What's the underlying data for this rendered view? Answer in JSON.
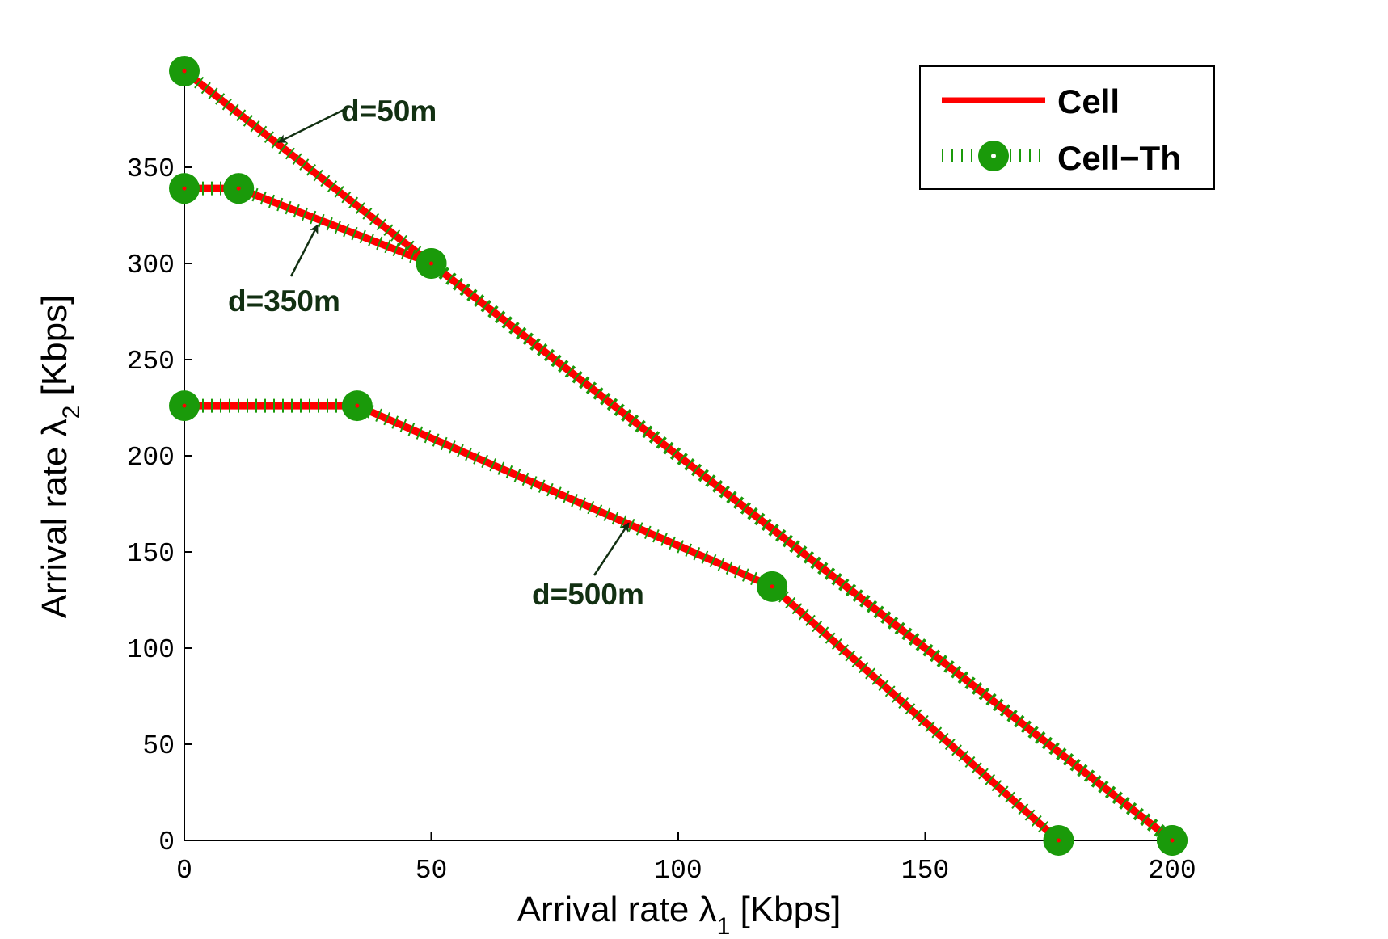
{
  "chart_data": {
    "type": "line",
    "xlabel": {
      "prefix": "Arrival rate ",
      "symbol": "λ",
      "subscript": "1",
      "suffix": " [Kbps]"
    },
    "ylabel": {
      "prefix": "Arrival rate ",
      "symbol": "λ",
      "subscript": "2",
      "suffix": " [Kbps]"
    },
    "xlim": [
      0,
      200
    ],
    "ylim": [
      0,
      400
    ],
    "xticks": [
      0,
      50,
      100,
      150,
      200
    ],
    "yticks": [
      0,
      50,
      100,
      150,
      200,
      250,
      300,
      350
    ],
    "grid": false,
    "legend": {
      "position": "top-right",
      "entries": [
        {
          "label": "Cell",
          "style": "solid-line",
          "color": "#ff0000"
        },
        {
          "label": "Cell−Th",
          "style": "dotted-line-circle-marker",
          "color": "#1a9a0a"
        }
      ]
    },
    "series": [
      {
        "name": "Cell (d=50m)",
        "group": "d=50m",
        "x": [
          0,
          50,
          200
        ],
        "y": [
          400,
          300,
          0
        ]
      },
      {
        "name": "Cell-Th (d=50m)",
        "group": "d=50m",
        "x": [
          0,
          50,
          200
        ],
        "y": [
          400,
          300,
          0
        ]
      },
      {
        "name": "Cell (d=350m)",
        "group": "d=350m",
        "x": [
          0,
          11,
          50,
          200
        ],
        "y": [
          339,
          339,
          300,
          0
        ]
      },
      {
        "name": "Cell-Th (d=350m)",
        "group": "d=350m",
        "x": [
          0,
          11,
          50,
          200
        ],
        "y": [
          339,
          339,
          300,
          0
        ]
      },
      {
        "name": "Cell (d=500m)",
        "group": "d=500m",
        "x": [
          0,
          35,
          119,
          177
        ],
        "y": [
          226,
          226,
          132,
          0
        ]
      },
      {
        "name": "Cell-Th (d=500m)",
        "group": "d=500m",
        "x": [
          0,
          35,
          119,
          177
        ],
        "y": [
          226,
          226,
          132,
          0
        ]
      }
    ],
    "annotations": [
      {
        "text": "d=50m",
        "arrow_to": [
          19,
          363
        ]
      },
      {
        "text": "d=350m",
        "arrow_to": [
          27,
          320
        ]
      },
      {
        "text": "d=500m",
        "arrow_to": [
          90,
          165
        ]
      }
    ]
  }
}
